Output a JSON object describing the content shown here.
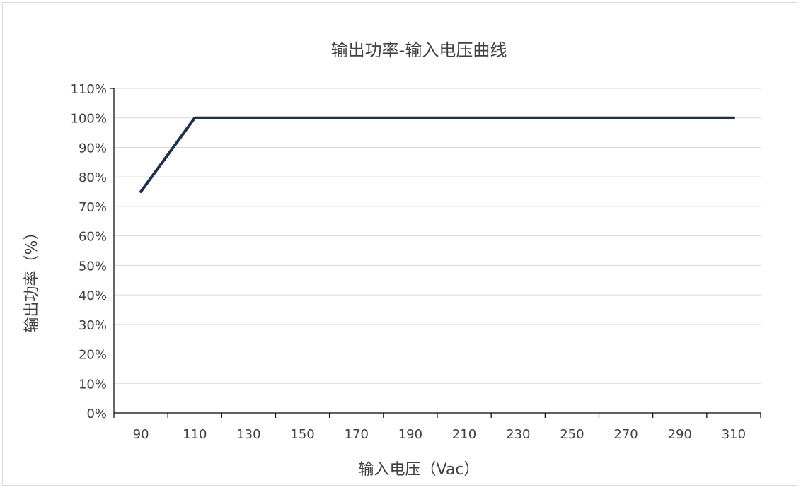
{
  "chart_data": {
    "type": "line",
    "title": "输出功率-输入电压曲线",
    "xlabel": "输入电压（Vac）",
    "ylabel": "输出功率（%）",
    "x_ticks": [
      "90",
      "110",
      "130",
      "150",
      "170",
      "190",
      "210",
      "230",
      "250",
      "270",
      "290",
      "310"
    ],
    "y_ticks": [
      "0%",
      "10%",
      "20%",
      "30%",
      "40%",
      "50%",
      "60%",
      "70%",
      "80%",
      "90%",
      "100%",
      "110%"
    ],
    "xlim": [
      80,
      320
    ],
    "ylim": [
      0,
      110
    ],
    "grid": true,
    "legend": "none",
    "series": [
      {
        "x": [
          90,
          110,
          310
        ],
        "y": [
          75,
          100,
          100
        ],
        "color": "#1f3047"
      }
    ]
  }
}
